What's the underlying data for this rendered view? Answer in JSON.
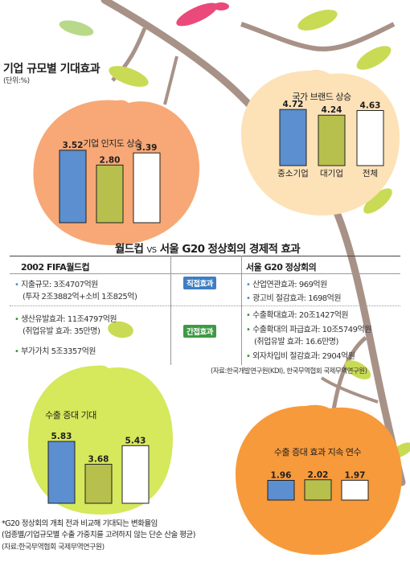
{
  "headline": "기업 규모별 기대효과",
  "unit": "(단위:%)",
  "chart_data": [
    {
      "type": "bar",
      "title": "기업 인지도 상승",
      "values": [
        3.52,
        2.8,
        3.39
      ],
      "labels": [
        "3.52",
        "2.80",
        "3.39"
      ],
      "categories": [],
      "colors": [
        "#5b8fd0",
        "#b7c04d",
        "#ffffff"
      ],
      "ylim": [
        0,
        6
      ]
    },
    {
      "type": "bar",
      "title": "국가 브랜드 상승",
      "values": [
        4.72,
        4.24,
        4.63
      ],
      "labels": [
        "4.72",
        "4.24",
        "4.63"
      ],
      "categories": [
        "중소기업",
        "대기업",
        "전체"
      ],
      "colors": [
        "#5b8fd0",
        "#b7c04d",
        "#ffffff"
      ],
      "ylim": [
        0,
        6
      ]
    },
    {
      "type": "bar",
      "title": "수출 증대 기대",
      "values": [
        5.83,
        3.68,
        5.43
      ],
      "labels": [
        "5.83",
        "3.68",
        "5.43"
      ],
      "categories": [],
      "colors": [
        "#5b8fd0",
        "#b7c04d",
        "#ffffff"
      ],
      "ylim": [
        0,
        6
      ]
    },
    {
      "type": "bar",
      "title": "수출 증대 효과 지속 연수",
      "values": [
        1.96,
        2.02,
        1.97
      ],
      "labels": [
        "1.96",
        "2.02",
        "1.97"
      ],
      "categories": [],
      "colors": [
        "#5b8fd0",
        "#b7c04d",
        "#ffffff"
      ],
      "ylim": [
        0,
        4
      ]
    }
  ],
  "table": {
    "title_left": "월드컵",
    "title_vs": "VS",
    "title_right": "서울 G20 정상회의 경제적 효과",
    "col_left": "2002 FIFA월드컵",
    "col_right": "서울 G20 정상회의",
    "badge_direct": "직접효과",
    "badge_indirect": "간접효과",
    "direct_left": [
      "지출규모: 3조4707억원",
      "(투자 2조3882억+소비 1조825억)"
    ],
    "direct_right": [
      "산업연관효과: 969억원",
      "광고비 절감효과: 1698억원"
    ],
    "indirect_left": [
      "생산유발효과: 11조4797억원",
      "(취업유발 효과: 35만명)",
      "부가가치 5조3357억원"
    ],
    "indirect_right": [
      "수출확대효과: 20조1427억원",
      "수출확대의 파급효과: 10조5749억원",
      "(취업유발 효과: 16.6만명)",
      "외자차입비 절감효과: 2904억원"
    ],
    "source": "(자료:한국개발연구원(KDI), 한국무역협회 국제무역연구원)"
  },
  "footnotes": {
    "line1": "*G20 정상회의 개최 전과 비교해 기대되는 변화율임",
    "line2": "(업종별/기업규모별 수출 가중치를 고려하지 않는 단순 산술 평균)",
    "source": "(자료:한국무역협회 국제무역연구원)"
  },
  "colors": {
    "peach": "#f7a876",
    "cream": "#fde2b8",
    "lime": "#d6e85c",
    "orange": "#f79a3b",
    "branch": "#a89288",
    "leaf": "#c9db54",
    "blue_badge": "#3f7fc4",
    "green_badge": "#3f9a44"
  }
}
